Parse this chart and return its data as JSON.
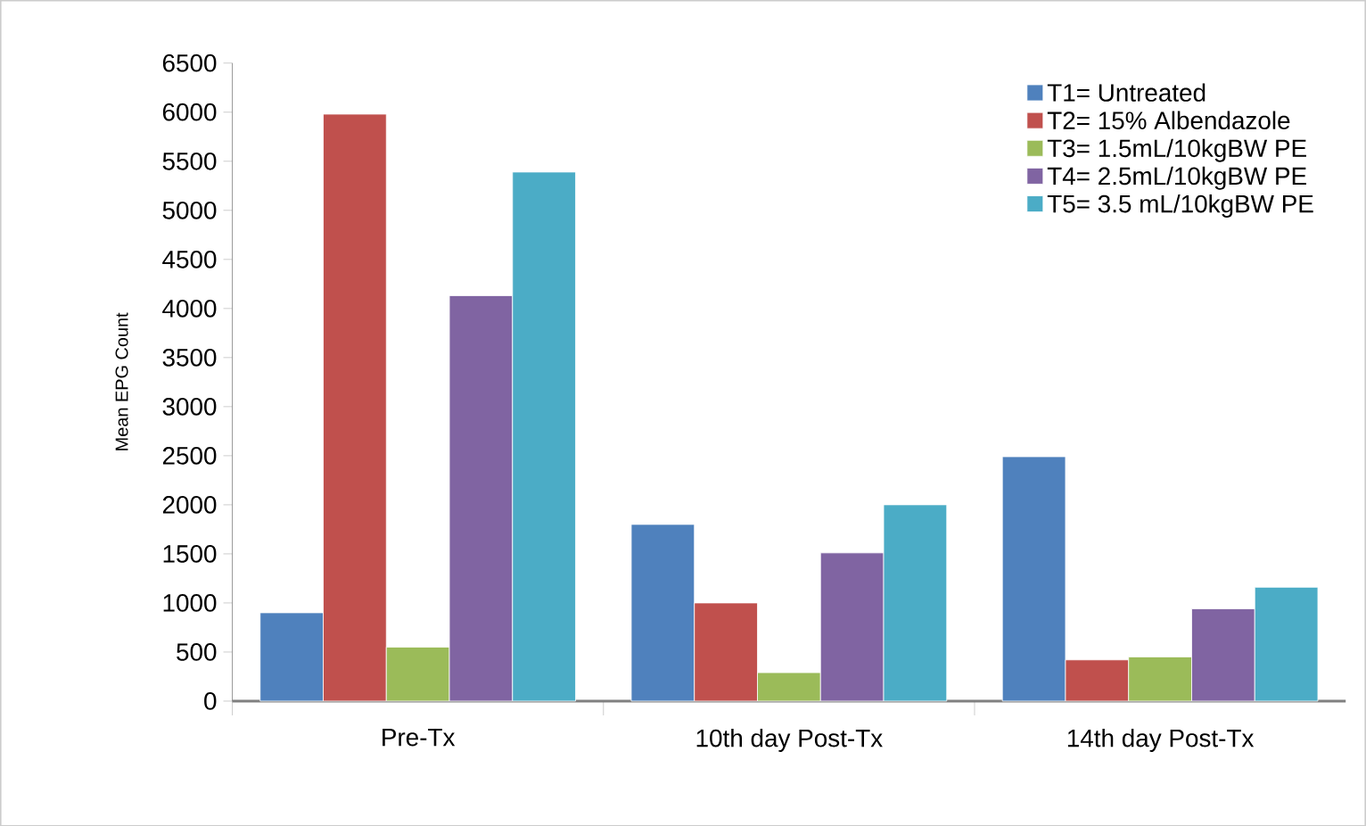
{
  "chart_data": {
    "type": "bar",
    "ylabel": "Mean EPG Count",
    "categories": [
      "Pre-Tx",
      "10th day Post-Tx",
      "14th day Post-Tx"
    ],
    "series": [
      {
        "name": "T1= Untreated",
        "color": "#4f81bd",
        "values": [
          900,
          1800,
          2490
        ]
      },
      {
        "name": "T2= 15% Albendazole",
        "color": "#c0504d",
        "values": [
          5980,
          1000,
          420
        ]
      },
      {
        "name": "T3= 1.5mL/10kgBW PE",
        "color": "#9bbb59",
        "values": [
          550,
          290,
          450
        ]
      },
      {
        "name": "T4= 2.5mL/10kgBW PE",
        "color": "#8064a2",
        "values": [
          4130,
          1510,
          940
        ]
      },
      {
        "name": "T5= 3.5 mL/10kgBW PE",
        "color": "#4bacc6",
        "values": [
          5390,
          2000,
          1160
        ]
      }
    ],
    "ylim": [
      0,
      6500
    ],
    "yticks": [
      0,
      500,
      1000,
      1500,
      2000,
      2500,
      3000,
      3500,
      4000,
      4500,
      5000,
      5500,
      6000,
      6500
    ],
    "grid": false,
    "legend": "top right"
  }
}
